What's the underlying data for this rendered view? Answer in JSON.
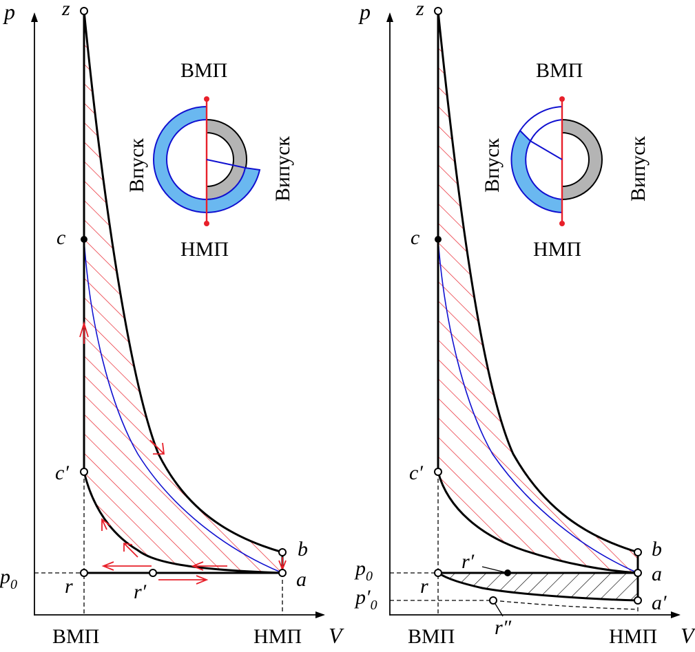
{
  "left_panel": {
    "axis_p": "p",
    "axis_v": "V",
    "tdc": "ВМП",
    "bdc": "НМП",
    "p0": "p",
    "p0_sub": "0",
    "points": {
      "z": "z",
      "c": "c",
      "c_prime": "c′",
      "b": "b",
      "a": "a",
      "r": "r",
      "r_prime": "r′"
    },
    "valve_diagram": {
      "top": "ВМП",
      "bottom": "НМП",
      "intake": "Впуск",
      "exhaust": "Випуск"
    }
  },
  "right_panel": {
    "axis_p": "p",
    "axis_v": "V",
    "tdc": "ВМП",
    "bdc": "НМП",
    "p0": "p",
    "p0_sub": "0",
    "p0_prime": "p′",
    "p0_prime_sub": "0",
    "points": {
      "z": "z",
      "c": "c",
      "c_prime": "c′",
      "b": "b",
      "a": "a",
      "a_prime": "a′",
      "r": "r",
      "r_prime": "r′",
      "r_double_prime": "r″"
    },
    "valve_diagram": {
      "top": "ВМП",
      "bottom": "НМП",
      "intake": "Впуск",
      "exhaust": "Випуск"
    }
  },
  "colors": {
    "hatch_red": "#e8202a",
    "curve_blue": "#1010d0",
    "intake_fill": "#6ab8f0",
    "exhaust_fill": "#b4b4b4",
    "valve_line": "#e8202a"
  }
}
